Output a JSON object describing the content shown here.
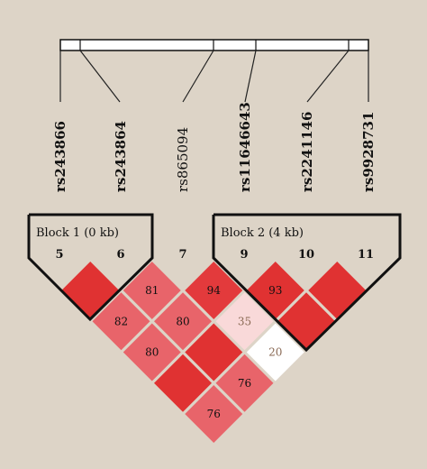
{
  "snps": [
    {
      "name": "rs243866",
      "index": "5",
      "bold": true
    },
    {
      "name": "rs243864",
      "index": "6",
      "bold": true
    },
    {
      "name": "rs865094",
      "index": "7",
      "bold": false
    },
    {
      "name": "rs11646643",
      "index": "9",
      "bold": true
    },
    {
      "name": "rs2241146",
      "index": "10",
      "bold": true
    },
    {
      "name": "rs9928731",
      "index": "11",
      "bold": true
    }
  ],
  "blocks": [
    {
      "label": "Block 1 (0 kb)",
      "from": 0,
      "to": 1
    },
    {
      "label": "Block 2 (4 kb)",
      "from": 3,
      "to": 5
    }
  ],
  "ld_cells": [
    {
      "pair": [
        0,
        1
      ],
      "value": "",
      "color": "#e03232"
    },
    {
      "pair": [
        1,
        2
      ],
      "value": "81",
      "color": "#e8646a"
    },
    {
      "pair": [
        2,
        3
      ],
      "value": "94",
      "color": "#e33a3c"
    },
    {
      "pair": [
        3,
        4
      ],
      "value": "93",
      "color": "#e03232"
    },
    {
      "pair": [
        4,
        5
      ],
      "value": "",
      "color": "#e03232"
    },
    {
      "pair": [
        0,
        2
      ],
      "value": "82",
      "color": "#e8646a"
    },
    {
      "pair": [
        1,
        3
      ],
      "value": "80",
      "color": "#e8646a"
    },
    {
      "pair": [
        2,
        4
      ],
      "value": "35",
      "color": "#f9d9d9"
    },
    {
      "pair": [
        3,
        5
      ],
      "value": "",
      "color": "#e03232"
    },
    {
      "pair": [
        0,
        3
      ],
      "value": "80",
      "color": "#e8646a"
    },
    {
      "pair": [
        1,
        4
      ],
      "value": "",
      "color": "#e03232"
    },
    {
      "pair": [
        2,
        5
      ],
      "value": "20",
      "color": "#ffffff"
    },
    {
      "pair": [
        0,
        4
      ],
      "value": "",
      "color": "#e03232"
    },
    {
      "pair": [
        1,
        5
      ],
      "value": "76",
      "color": "#e8646a"
    },
    {
      "pair": [
        0,
        5
      ],
      "value": "76",
      "color": "#e8646a"
    }
  ],
  "colors": {
    "background": "#ddd4c7",
    "text": "#111111",
    "light_value_text": "#8a6a55"
  }
}
